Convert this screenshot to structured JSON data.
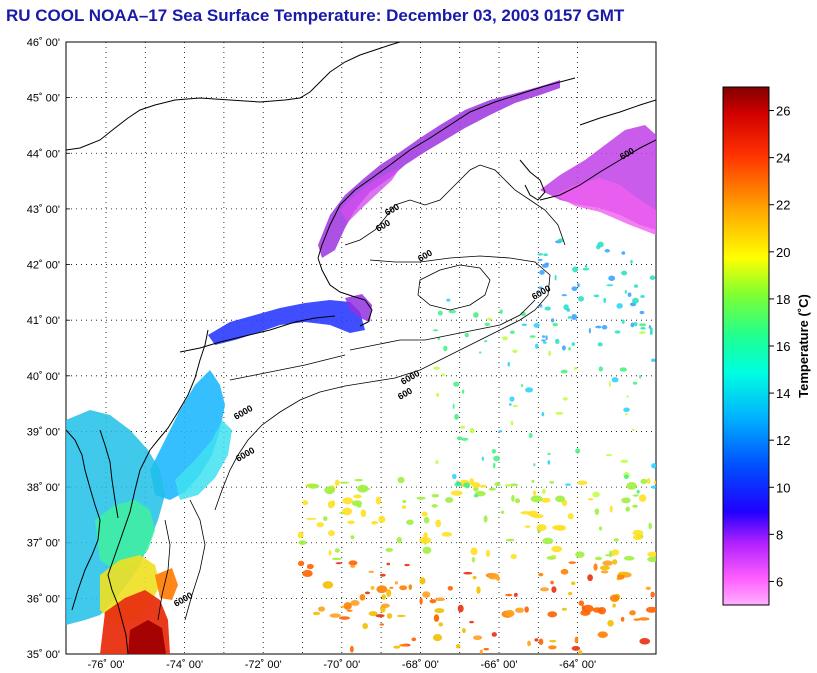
{
  "title": "RU COOL  NOAA–17  Sea Surface Temperature:  December 03, 2003 0157 GMT",
  "map": {
    "lat_labels": [
      "46˚ 00'",
      "45˚ 00'",
      "44˚ 00'",
      "43˚ 00'",
      "42˚ 00'",
      "41˚ 00'",
      "40˚ 00'",
      "39˚ 00'",
      "38˚ 00'",
      "37˚ 00'",
      "36˚ 00'",
      "35˚ 00'"
    ],
    "lon_labels": [
      "-76˚ 00'",
      "-74˚ 00'",
      "-72˚ 00'",
      "-70˚ 00'",
      "-68˚ 00'",
      "-66˚ 00'",
      "-64˚ 00'"
    ],
    "contour_labels": [
      "600",
      "600",
      "600",
      "600",
      "6000",
      "6000",
      "600",
      "6000",
      "6000",
      "6000"
    ],
    "land_color": "#ffffff",
    "grid": "dotted"
  },
  "colorbar": {
    "title": "Temperature (˚C)",
    "ticks": [
      "26",
      "24",
      "22",
      "20",
      "18",
      "16",
      "14",
      "12",
      "10",
      "8",
      "6"
    ],
    "range": [
      5,
      27
    ],
    "colors": [
      "#ff80ff",
      "#c020ff",
      "#0000ff",
      "#00c0ff",
      "#00ffe0",
      "#40ff80",
      "#ffff00",
      "#ff9000",
      "#ff2000",
      "#900000"
    ]
  }
}
